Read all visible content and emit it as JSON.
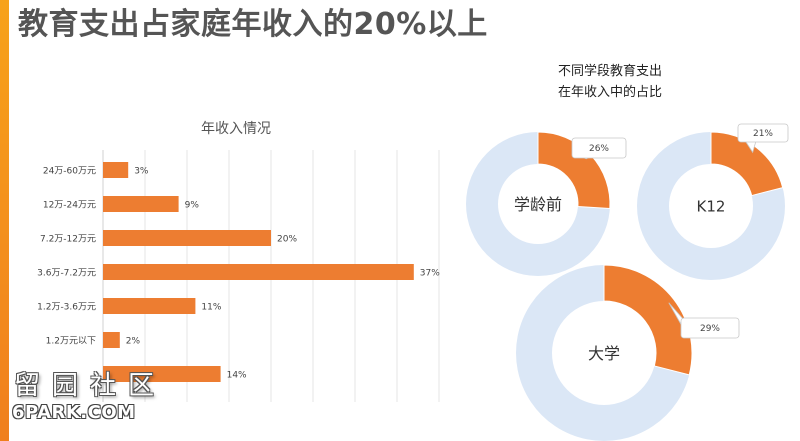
{
  "slide": {
    "title": "教育支出占家庭年收入的20%以上"
  },
  "colors": {
    "accent": "#f07f1c",
    "bar": "#ed7d31",
    "donut_track": "#dbe7f6"
  },
  "chart_data": [
    {
      "type": "bar",
      "orientation": "horizontal",
      "title": "年收入情况",
      "categories": [
        "24万-60万元",
        "12万-24万元",
        "7.2万-12万元",
        "3.6万-7.2万元",
        "1.2万-3.6万元",
        "1.2万元以下",
        ""
      ],
      "values": [
        3,
        9,
        20,
        37,
        11,
        2,
        14
      ],
      "labels": [
        "3%",
        "9%",
        "20%",
        "37%",
        "11%",
        "2%",
        "14%"
      ],
      "xlim": [
        0,
        40
      ],
      "grid": true
    },
    {
      "type": "pie",
      "variant": "donut",
      "title": "不同学段教育支出在年收入中的占比",
      "title_lines": [
        "不同学段教育支出",
        "在年收入中的占比"
      ],
      "slices": [
        {
          "name": "学龄前",
          "value": 26,
          "label": "26%"
        },
        {
          "name": "K12",
          "value": 21,
          "label": "21%"
        },
        {
          "name": "大学",
          "value": 29,
          "label": "29%"
        }
      ]
    }
  ],
  "watermark": {
    "cn": "留园社区",
    "en": "6PARK.COM"
  }
}
